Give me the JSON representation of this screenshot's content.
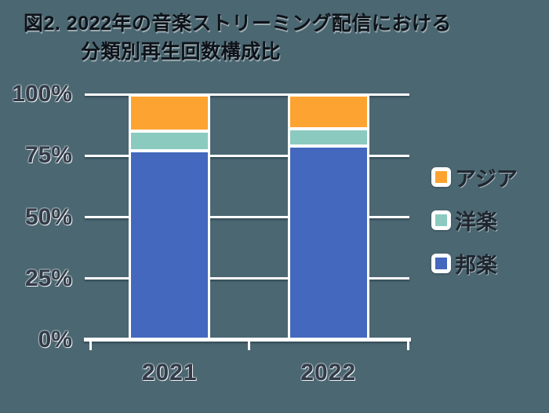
{
  "colors": {
    "background": "#4B6772",
    "grid": "#FFFFFF",
    "axis": "#FFFFFF",
    "label_text": "#333B48",
    "title_text": "#0E1319"
  },
  "chart_data": {
    "type": "bar",
    "stacked": true,
    "title": "図2. 2022年の音楽ストリーミング配信における分類別再生回数構成比",
    "title_lines": [
      "図2. 2022年の音楽ストリーミング配信における",
      "分類別再生回数構成比"
    ],
    "categories": [
      "2021",
      "2022"
    ],
    "series_order": "top-to-bottom",
    "series": [
      {
        "name": "アジア",
        "color": "#FCA332",
        "values": [
          14,
          13
        ]
      },
      {
        "name": "洋楽",
        "color": "#8BCABF",
        "values": [
          7,
          6
        ]
      },
      {
        "name": "邦楽",
        "color": "#4368BE",
        "values": [
          79,
          81
        ]
      }
    ],
    "unit": "%",
    "ylim": [
      0,
      100
    ],
    "y_ticks": [
      {
        "label": "100%",
        "value": 100
      },
      {
        "label": "75%",
        "value": 75
      },
      {
        "label": "50%",
        "value": 50
      },
      {
        "label": "25%",
        "value": 25
      },
      {
        "label": "0%",
        "value": 0
      }
    ],
    "grid": true,
    "legend_position": "right"
  }
}
